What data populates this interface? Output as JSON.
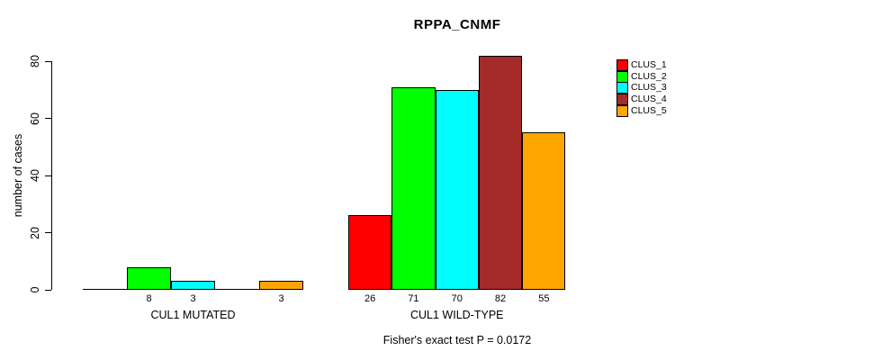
{
  "chart_data": {
    "type": "bar",
    "title": "RPPA_CNMF",
    "ylabel": "number of cases",
    "xlabel": "",
    "ylim": [
      0,
      80
    ],
    "yticks": [
      0,
      20,
      40,
      60,
      80
    ],
    "grid": false,
    "legend_position": "top-right",
    "categories": [
      "CUL1 MUTATED",
      "CUL1 WILD-TYPE"
    ],
    "series": [
      {
        "name": "CLUS_1",
        "color": "#FF0000",
        "values": [
          0,
          26
        ]
      },
      {
        "name": "CLUS_2",
        "color": "#00FF00",
        "values": [
          8,
          71
        ]
      },
      {
        "name": "CLUS_3",
        "color": "#00FFFF",
        "values": [
          3,
          70
        ]
      },
      {
        "name": "CLUS_4",
        "color": "#A52A2A",
        "values": [
          0,
          82
        ]
      },
      {
        "name": "CLUS_5",
        "color": "#FFA500",
        "values": [
          3,
          55
        ]
      }
    ],
    "bar_value_labels": {
      "CUL1 MUTATED": [
        "",
        "8",
        "3",
        "",
        "3"
      ],
      "CUL1 WILD-TYPE": [
        "26",
        "71",
        "70",
        "82",
        "55"
      ]
    },
    "annotation": "Fisher's exact test P = 0.0172"
  }
}
